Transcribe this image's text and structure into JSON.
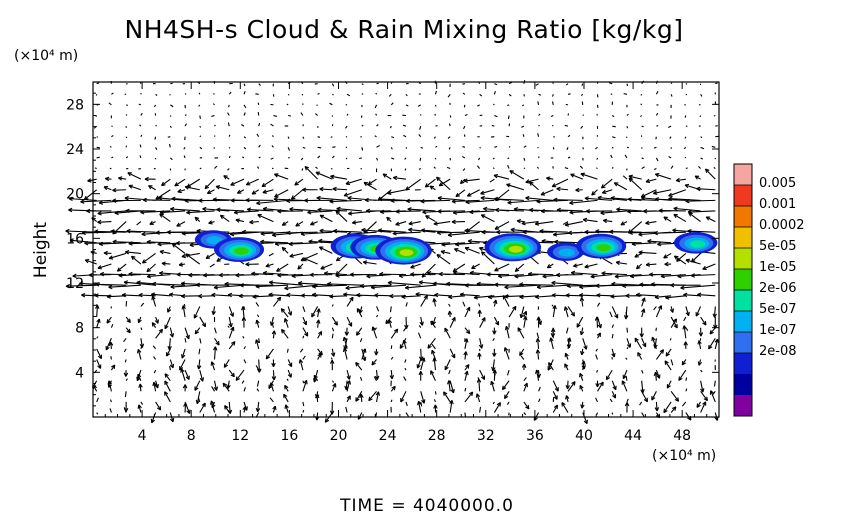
{
  "chart_data": {
    "type": "heatmap",
    "title": "NH4SH-s Cloud & Rain Mixing Ratio [kg/kg]",
    "ylabel": "Height",
    "x_unit": "(×10⁴ m)",
    "y_unit": "(×10⁴ m)",
    "xlim": [
      0,
      51
    ],
    "ylim": [
      0,
      30
    ],
    "x_ticks": [
      4,
      8,
      12,
      16,
      20,
      24,
      28,
      32,
      36,
      40,
      44,
      48
    ],
    "y_ticks": [
      4,
      8,
      12,
      16,
      20,
      24,
      28
    ],
    "colorbar": {
      "labels": [
        "0.005",
        "0.001",
        "0.0002",
        "5e-05",
        "1e-05",
        "2e-06",
        "5e-07",
        "1e-07",
        "2e-08"
      ],
      "colors": [
        "#f4a6a0",
        "#f03a20",
        "#f07800",
        "#f0c000",
        "#b4e000",
        "#30d000",
        "#00e0a0",
        "#00b0f0",
        "#3070f0",
        "#1020d0",
        "#0000a0",
        "#8000a0"
      ]
    },
    "cloud_cells": [
      {
        "x": 9.8,
        "y": 15.9,
        "level": "5e-07"
      },
      {
        "x": 11.9,
        "y": 15.0,
        "level": "1e-05"
      },
      {
        "x": 21.4,
        "y": 15.3,
        "level": "1e-05"
      },
      {
        "x": 23.0,
        "y": 15.2,
        "level": "1e-05"
      },
      {
        "x": 25.3,
        "y": 14.9,
        "level": "5e-05"
      },
      {
        "x": 34.2,
        "y": 15.2,
        "level": "5e-05"
      },
      {
        "x": 38.5,
        "y": 14.8,
        "level": "5e-07"
      },
      {
        "x": 41.4,
        "y": 15.3,
        "level": "1e-05"
      },
      {
        "x": 49.1,
        "y": 15.6,
        "level": "2e-06"
      }
    ],
    "wind_bands": [
      {
        "y": 12.0,
        "direction": "westward",
        "strength": "strong"
      },
      {
        "y": 16.2,
        "direction": "westward",
        "strength": "strong"
      },
      {
        "y": 19.0,
        "direction": "westward",
        "strength": "strong"
      }
    ],
    "grid": false
  },
  "time_label": "TIME",
  "time_value": "4040000.0"
}
